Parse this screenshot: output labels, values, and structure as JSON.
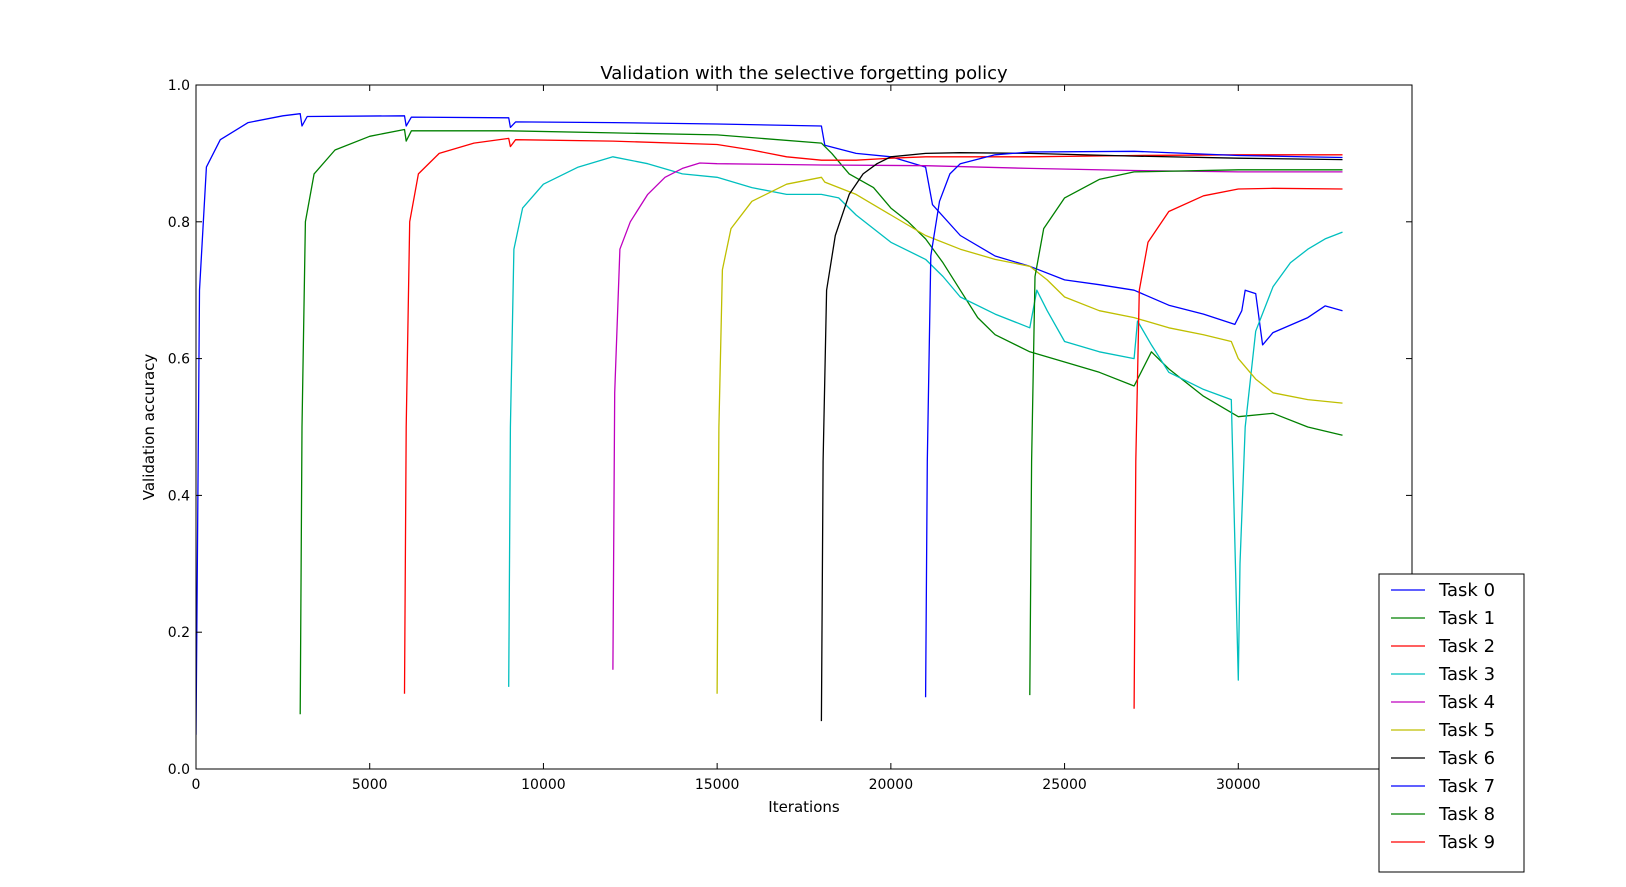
{
  "chart_data": {
    "type": "line",
    "title": "Validation with the selective forgetting policy",
    "xlabel": "Iterations",
    "ylabel": "Validation accuracy",
    "xlim": [
      0,
      35000
    ],
    "ylim": [
      0.0,
      1.0
    ],
    "xticks": [
      0,
      5000,
      10000,
      15000,
      20000,
      25000,
      30000
    ],
    "yticks": [
      0.0,
      0.2,
      0.4,
      0.6,
      0.8,
      1.0
    ],
    "grid": false,
    "legend_position": "lower-right (extends outside axes)",
    "series": [
      {
        "name": "Task 0",
        "color": "#0000ff",
        "points": [
          [
            0,
            0.05
          ],
          [
            100,
            0.7
          ],
          [
            300,
            0.88
          ],
          [
            700,
            0.92
          ],
          [
            1500,
            0.945
          ],
          [
            2500,
            0.955
          ],
          [
            3000,
            0.958
          ],
          [
            3050,
            0.94
          ],
          [
            3200,
            0.954
          ],
          [
            6000,
            0.955
          ],
          [
            6050,
            0.94
          ],
          [
            6200,
            0.953
          ],
          [
            9000,
            0.952
          ],
          [
            9050,
            0.938
          ],
          [
            9200,
            0.946
          ],
          [
            12000,
            0.945
          ],
          [
            15000,
            0.943
          ],
          [
            18000,
            0.94
          ],
          [
            18100,
            0.912
          ],
          [
            19000,
            0.9
          ],
          [
            20000,
            0.895
          ],
          [
            21000,
            0.88
          ],
          [
            21200,
            0.825
          ],
          [
            22000,
            0.78
          ],
          [
            23000,
            0.75
          ],
          [
            24000,
            0.735
          ],
          [
            25000,
            0.715
          ],
          [
            26000,
            0.708
          ],
          [
            27000,
            0.7
          ],
          [
            28000,
            0.678
          ],
          [
            29000,
            0.665
          ],
          [
            29900,
            0.65
          ],
          [
            30100,
            0.67
          ],
          [
            30200,
            0.7
          ],
          [
            30500,
            0.695
          ],
          [
            30700,
            0.62
          ],
          [
            31000,
            0.638
          ],
          [
            32000,
            0.66
          ],
          [
            32500,
            0.677
          ],
          [
            33000,
            0.67
          ]
        ]
      },
      {
        "name": "Task 1",
        "color": "#008000",
        "points": [
          [
            3000,
            0.08
          ],
          [
            3050,
            0.5
          ],
          [
            3150,
            0.8
          ],
          [
            3400,
            0.87
          ],
          [
            4000,
            0.905
          ],
          [
            5000,
            0.925
          ],
          [
            6000,
            0.935
          ],
          [
            6050,
            0.918
          ],
          [
            6200,
            0.933
          ],
          [
            9000,
            0.933
          ],
          [
            12000,
            0.93
          ],
          [
            15000,
            0.927
          ],
          [
            18000,
            0.915
          ],
          [
            18300,
            0.9
          ],
          [
            18800,
            0.87
          ],
          [
            19500,
            0.85
          ],
          [
            20000,
            0.82
          ],
          [
            20500,
            0.8
          ],
          [
            21000,
            0.775
          ],
          [
            21500,
            0.74
          ],
          [
            22000,
            0.7
          ],
          [
            22500,
            0.66
          ],
          [
            23000,
            0.635
          ],
          [
            24000,
            0.61
          ],
          [
            25000,
            0.595
          ],
          [
            26000,
            0.58
          ],
          [
            27000,
            0.56
          ],
          [
            27500,
            0.61
          ],
          [
            28000,
            0.585
          ],
          [
            29000,
            0.545
          ],
          [
            30000,
            0.515
          ],
          [
            31000,
            0.52
          ],
          [
            32000,
            0.5
          ],
          [
            33000,
            0.488
          ]
        ]
      },
      {
        "name": "Task 2",
        "color": "#ff0000",
        "points": [
          [
            6000,
            0.11
          ],
          [
            6050,
            0.5
          ],
          [
            6150,
            0.8
          ],
          [
            6400,
            0.87
          ],
          [
            7000,
            0.9
          ],
          [
            8000,
            0.915
          ],
          [
            9000,
            0.922
          ],
          [
            9050,
            0.91
          ],
          [
            9200,
            0.92
          ],
          [
            12000,
            0.918
          ],
          [
            15000,
            0.913
          ],
          [
            16000,
            0.905
          ],
          [
            17000,
            0.895
          ],
          [
            18000,
            0.89
          ],
          [
            19000,
            0.89
          ],
          [
            20000,
            0.893
          ],
          [
            21000,
            0.895
          ],
          [
            24000,
            0.895
          ],
          [
            27000,
            0.897
          ],
          [
            30000,
            0.898
          ],
          [
            33000,
            0.898
          ]
        ]
      },
      {
        "name": "Task 3",
        "color": "#00bfbf",
        "points": [
          [
            9000,
            0.12
          ],
          [
            9050,
            0.5
          ],
          [
            9150,
            0.76
          ],
          [
            9400,
            0.82
          ],
          [
            10000,
            0.855
          ],
          [
            11000,
            0.88
          ],
          [
            12000,
            0.895
          ],
          [
            13000,
            0.885
          ],
          [
            14000,
            0.87
          ],
          [
            15000,
            0.865
          ],
          [
            16000,
            0.85
          ],
          [
            17000,
            0.84
          ],
          [
            18000,
            0.84
          ],
          [
            18500,
            0.835
          ],
          [
            19000,
            0.81
          ],
          [
            20000,
            0.77
          ],
          [
            21000,
            0.745
          ],
          [
            21500,
            0.72
          ],
          [
            22000,
            0.69
          ],
          [
            23000,
            0.665
          ],
          [
            24000,
            0.645
          ],
          [
            24200,
            0.7
          ],
          [
            24500,
            0.67
          ],
          [
            25000,
            0.625
          ],
          [
            26000,
            0.61
          ],
          [
            27000,
            0.6
          ],
          [
            27100,
            0.655
          ],
          [
            27500,
            0.62
          ],
          [
            28000,
            0.58
          ],
          [
            29000,
            0.555
          ],
          [
            29800,
            0.54
          ],
          [
            30000,
            0.13
          ],
          [
            30050,
            0.3
          ],
          [
            30200,
            0.5
          ],
          [
            30500,
            0.64
          ],
          [
            31000,
            0.705
          ],
          [
            31500,
            0.74
          ],
          [
            32000,
            0.76
          ],
          [
            32500,
            0.775
          ],
          [
            33000,
            0.785
          ]
        ]
      },
      {
        "name": "Task 4",
        "color": "#bf00bf",
        "points": [
          [
            12000,
            0.145
          ],
          [
            12050,
            0.55
          ],
          [
            12200,
            0.76
          ],
          [
            12500,
            0.8
          ],
          [
            13000,
            0.84
          ],
          [
            13500,
            0.865
          ],
          [
            14000,
            0.878
          ],
          [
            14500,
            0.886
          ],
          [
            15000,
            0.885
          ],
          [
            18000,
            0.883
          ],
          [
            21000,
            0.882
          ],
          [
            24000,
            0.878
          ],
          [
            27000,
            0.875
          ],
          [
            30000,
            0.873
          ],
          [
            33000,
            0.873
          ]
        ]
      },
      {
        "name": "Task 5",
        "color": "#bfbf00",
        "points": [
          [
            15000,
            0.11
          ],
          [
            15050,
            0.5
          ],
          [
            15150,
            0.73
          ],
          [
            15400,
            0.79
          ],
          [
            16000,
            0.83
          ],
          [
            17000,
            0.855
          ],
          [
            18000,
            0.865
          ],
          [
            18100,
            0.858
          ],
          [
            19000,
            0.84
          ],
          [
            20000,
            0.81
          ],
          [
            21000,
            0.78
          ],
          [
            22000,
            0.76
          ],
          [
            23000,
            0.745
          ],
          [
            24000,
            0.735
          ],
          [
            24500,
            0.715
          ],
          [
            25000,
            0.69
          ],
          [
            26000,
            0.67
          ],
          [
            27000,
            0.66
          ],
          [
            28000,
            0.645
          ],
          [
            29000,
            0.635
          ],
          [
            29800,
            0.625
          ],
          [
            30000,
            0.6
          ],
          [
            30500,
            0.57
          ],
          [
            31000,
            0.55
          ],
          [
            32000,
            0.54
          ],
          [
            33000,
            0.535
          ]
        ]
      },
      {
        "name": "Task 6",
        "color": "#000000",
        "points": [
          [
            18000,
            0.07
          ],
          [
            18050,
            0.45
          ],
          [
            18150,
            0.7
          ],
          [
            18400,
            0.78
          ],
          [
            18800,
            0.84
          ],
          [
            19200,
            0.87
          ],
          [
            19600,
            0.885
          ],
          [
            20000,
            0.895
          ],
          [
            21000,
            0.9
          ],
          [
            22000,
            0.901
          ],
          [
            24000,
            0.9
          ],
          [
            27000,
            0.896
          ],
          [
            30000,
            0.893
          ],
          [
            33000,
            0.891
          ]
        ]
      },
      {
        "name": "Task 7",
        "color": "#0000ff",
        "points": [
          [
            21000,
            0.105
          ],
          [
            21050,
            0.45
          ],
          [
            21150,
            0.75
          ],
          [
            21400,
            0.83
          ],
          [
            21700,
            0.87
          ],
          [
            22000,
            0.885
          ],
          [
            23000,
            0.898
          ],
          [
            24000,
            0.902
          ],
          [
            27000,
            0.903
          ],
          [
            30000,
            0.897
          ],
          [
            33000,
            0.894
          ]
        ]
      },
      {
        "name": "Task 8",
        "color": "#008000",
        "points": [
          [
            24000,
            0.108
          ],
          [
            24050,
            0.45
          ],
          [
            24150,
            0.72
          ],
          [
            24400,
            0.79
          ],
          [
            25000,
            0.835
          ],
          [
            26000,
            0.862
          ],
          [
            27000,
            0.873
          ],
          [
            30000,
            0.876
          ],
          [
            33000,
            0.876
          ]
        ]
      },
      {
        "name": "Task 9",
        "color": "#ff0000",
        "points": [
          [
            27000,
            0.088
          ],
          [
            27050,
            0.45
          ],
          [
            27150,
            0.7
          ],
          [
            27400,
            0.77
          ],
          [
            28000,
            0.815
          ],
          [
            29000,
            0.838
          ],
          [
            30000,
            0.848
          ],
          [
            31000,
            0.849
          ],
          [
            33000,
            0.848
          ]
        ]
      }
    ]
  }
}
